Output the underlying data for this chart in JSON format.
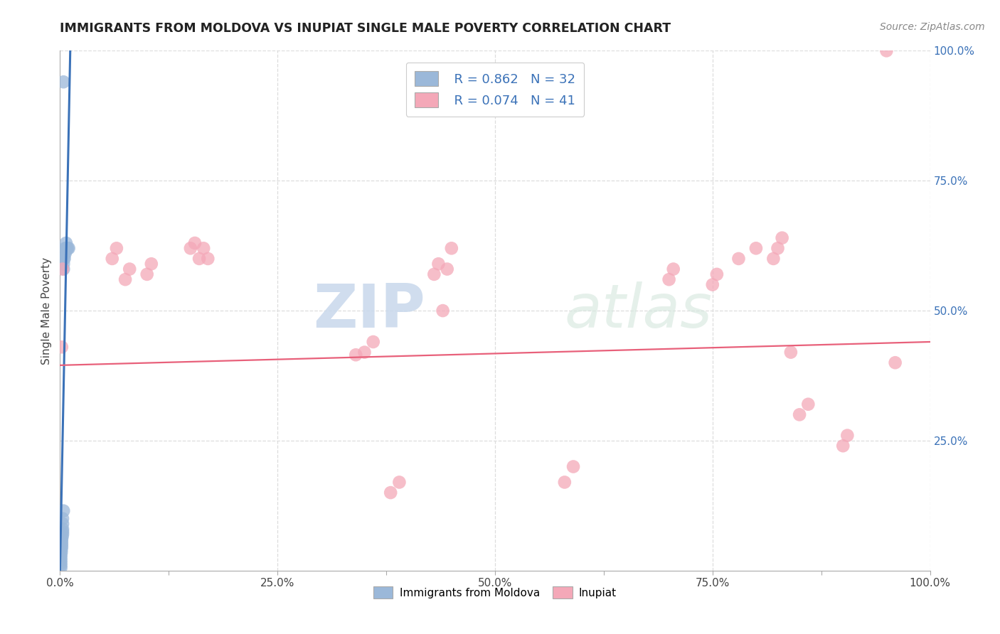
{
  "title": "IMMIGRANTS FROM MOLDOVA VS INUPIAT SINGLE MALE POVERTY CORRELATION CHART",
  "source": "Source: ZipAtlas.com",
  "ylabel": "Single Male Poverty",
  "xlim": [
    0,
    1.0
  ],
  "ylim": [
    0,
    1.0
  ],
  "xtick_labels": [
    "0.0%",
    "",
    "25.0%",
    "",
    "50.0%",
    "",
    "75.0%",
    "",
    "100.0%"
  ],
  "xtick_vals": [
    0.0,
    0.125,
    0.25,
    0.375,
    0.5,
    0.625,
    0.75,
    0.875,
    1.0
  ],
  "ytick_labels_right": [
    "100.0%",
    "75.0%",
    "50.0%",
    "25.0%"
  ],
  "ytick_vals": [
    1.0,
    0.75,
    0.5,
    0.25
  ],
  "grid_ytick_vals": [
    0.25,
    0.5,
    0.75,
    1.0
  ],
  "legend_labels": [
    "Immigrants from Moldova",
    "Inupiat"
  ],
  "r_blue": "R = 0.862",
  "n_blue": "N = 32",
  "r_pink": "R = 0.074",
  "n_pink": "N = 41",
  "blue_color": "#9BB8D9",
  "pink_color": "#F4A8B8",
  "blue_fill": "#9BB8D9",
  "pink_fill": "#F4A8B8",
  "blue_line_color": "#3B72B8",
  "pink_line_color": "#E8607A",
  "watermark_zip": "ZIP",
  "watermark_atlas": "atlas",
  "background_color": "#FFFFFF",
  "grid_color": "#DDDDDD",
  "title_color": "#222222",
  "text_color": "#444444",
  "right_tick_color": "#3B72B8",
  "blue_scatter": [
    [
      0.001,
      0.005
    ],
    [
      0.001,
      0.01
    ],
    [
      0.001,
      0.015
    ],
    [
      0.001,
      0.02
    ],
    [
      0.001,
      0.025
    ],
    [
      0.001,
      0.03
    ],
    [
      0.0015,
      0.035
    ],
    [
      0.0015,
      0.04
    ],
    [
      0.002,
      0.045
    ],
    [
      0.002,
      0.05
    ],
    [
      0.002,
      0.055
    ],
    [
      0.002,
      0.06
    ],
    [
      0.0025,
      0.065
    ],
    [
      0.003,
      0.07
    ],
    [
      0.003,
      0.075
    ],
    [
      0.003,
      0.08
    ],
    [
      0.003,
      0.09
    ],
    [
      0.003,
      0.1
    ],
    [
      0.004,
      0.115
    ],
    [
      0.004,
      0.58
    ],
    [
      0.004,
      0.6
    ],
    [
      0.005,
      0.6
    ],
    [
      0.005,
      0.61
    ],
    [
      0.006,
      0.61
    ],
    [
      0.006,
      0.62
    ],
    [
      0.007,
      0.62
    ],
    [
      0.007,
      0.63
    ],
    [
      0.008,
      0.62
    ],
    [
      0.009,
      0.62
    ],
    [
      0.01,
      0.62
    ],
    [
      0.004,
      0.59
    ],
    [
      0.004,
      0.94
    ]
  ],
  "pink_scatter": [
    [
      0.002,
      0.43
    ],
    [
      0.003,
      0.58
    ],
    [
      0.06,
      0.6
    ],
    [
      0.065,
      0.62
    ],
    [
      0.075,
      0.56
    ],
    [
      0.08,
      0.58
    ],
    [
      0.1,
      0.57
    ],
    [
      0.105,
      0.59
    ],
    [
      0.15,
      0.62
    ],
    [
      0.155,
      0.63
    ],
    [
      0.16,
      0.6
    ],
    [
      0.165,
      0.62
    ],
    [
      0.17,
      0.6
    ],
    [
      0.34,
      0.415
    ],
    [
      0.35,
      0.42
    ],
    [
      0.36,
      0.44
    ],
    [
      0.38,
      0.15
    ],
    [
      0.39,
      0.17
    ],
    [
      0.43,
      0.57
    ],
    [
      0.435,
      0.59
    ],
    [
      0.44,
      0.5
    ],
    [
      0.445,
      0.58
    ],
    [
      0.45,
      0.62
    ],
    [
      0.58,
      0.17
    ],
    [
      0.59,
      0.2
    ],
    [
      0.7,
      0.56
    ],
    [
      0.705,
      0.58
    ],
    [
      0.75,
      0.55
    ],
    [
      0.755,
      0.57
    ],
    [
      0.78,
      0.6
    ],
    [
      0.8,
      0.62
    ],
    [
      0.82,
      0.6
    ],
    [
      0.825,
      0.62
    ],
    [
      0.83,
      0.64
    ],
    [
      0.84,
      0.42
    ],
    [
      0.85,
      0.3
    ],
    [
      0.86,
      0.32
    ],
    [
      0.9,
      0.24
    ],
    [
      0.905,
      0.26
    ],
    [
      0.95,
      1.0
    ],
    [
      0.96,
      0.4
    ]
  ],
  "blue_line_x": [
    0.0,
    0.012
  ],
  "blue_line_y": [
    0.0,
    1.02
  ],
  "pink_line_x": [
    0.0,
    1.0
  ],
  "pink_line_y": [
    0.395,
    0.44
  ]
}
